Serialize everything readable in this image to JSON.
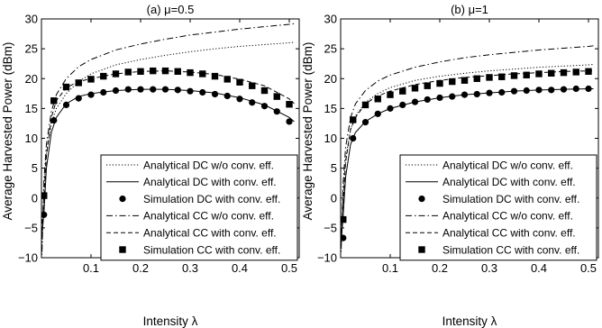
{
  "chart_data": [
    {
      "type": "line",
      "title": "(a) μ=0.5",
      "xlabel": "Intensity λ",
      "ylabel": "Average Harvested Power (dBm)",
      "xlim": [
        0,
        0.52
      ],
      "ylim": [
        -10,
        30
      ],
      "xticks": [
        0.1,
        0.2,
        0.3,
        0.4,
        0.5
      ],
      "xtick_labels": [
        "0.1",
        "0.2",
        "0.3",
        "0.4",
        "0.5"
      ],
      "yticks": [
        -10,
        -5,
        0,
        5,
        10,
        15,
        20,
        25,
        30
      ],
      "ytick_labels": [
        "−10",
        "−5",
        "0",
        "5",
        "10",
        "15",
        "20",
        "25",
        "30"
      ],
      "grid": false,
      "legend_position": "lower-right",
      "series": [
        {
          "name": "Analytical DC w/o conv. eff.",
          "style": "dotted",
          "x": [
            0.001,
            0.005,
            0.01,
            0.02,
            0.03,
            0.05,
            0.075,
            0.1,
            0.15,
            0.2,
            0.25,
            0.3,
            0.35,
            0.4,
            0.45,
            0.5,
            0.51
          ],
          "y": [
            -9.5,
            2.0,
            7.5,
            12.5,
            15.0,
            17.5,
            19.5,
            20.8,
            22.3,
            23.2,
            23.9,
            24.5,
            25.0,
            25.4,
            25.7,
            26.0,
            26.1
          ]
        },
        {
          "name": "Analytical DC with conv. eff.",
          "style": "solid",
          "x": [
            0.0,
            0.005,
            0.01,
            0.02,
            0.03,
            0.05,
            0.075,
            0.1,
            0.15,
            0.2,
            0.25,
            0.3,
            0.35,
            0.4,
            0.45,
            0.5,
            0.51
          ],
          "y": [
            -7.0,
            -2.5,
            5.0,
            11.0,
            13.5,
            15.8,
            17.0,
            17.5,
            18.0,
            18.2,
            18.2,
            18.0,
            17.6,
            16.8,
            15.6,
            13.5,
            12.8
          ]
        },
        {
          "name": "Simulation DC with conv. eff.",
          "style": "circle-markers",
          "x": [
            0.005,
            0.025,
            0.05,
            0.075,
            0.1,
            0.125,
            0.15,
            0.175,
            0.2,
            0.225,
            0.25,
            0.275,
            0.3,
            0.325,
            0.35,
            0.375,
            0.4,
            0.425,
            0.45,
            0.475,
            0.5
          ],
          "y": [
            -2.8,
            13.0,
            15.6,
            16.7,
            17.3,
            17.7,
            18.0,
            18.2,
            18.2,
            18.2,
            18.2,
            18.1,
            17.9,
            17.7,
            17.4,
            17.1,
            16.6,
            16.0,
            15.4,
            14.5,
            12.8
          ]
        },
        {
          "name": "Analytical CC w/o conv. eff.",
          "style": "dashdot",
          "x": [
            0.001,
            0.005,
            0.01,
            0.02,
            0.03,
            0.05,
            0.075,
            0.1,
            0.15,
            0.2,
            0.25,
            0.3,
            0.35,
            0.4,
            0.45,
            0.5,
            0.51
          ],
          "y": [
            -9.0,
            3.0,
            9.0,
            14.5,
            17.3,
            20.0,
            22.0,
            23.2,
            24.8,
            25.8,
            26.6,
            27.3,
            27.8,
            28.3,
            28.7,
            29.1,
            29.2
          ]
        },
        {
          "name": "Analytical CC with conv. eff.",
          "style": "dashed",
          "x": [
            0.0,
            0.005,
            0.01,
            0.02,
            0.03,
            0.05,
            0.075,
            0.1,
            0.15,
            0.2,
            0.25,
            0.3,
            0.35,
            0.4,
            0.45,
            0.5,
            0.51
          ],
          "y": [
            -5.5,
            0.5,
            7.0,
            13.5,
            16.3,
            18.5,
            19.5,
            20.0,
            20.8,
            21.2,
            21.3,
            21.1,
            20.7,
            19.9,
            18.8,
            16.6,
            15.8
          ]
        },
        {
          "name": "Simulation CC with conv. eff.",
          "style": "square-markers",
          "x": [
            0.005,
            0.025,
            0.05,
            0.075,
            0.1,
            0.125,
            0.15,
            0.175,
            0.2,
            0.225,
            0.25,
            0.275,
            0.3,
            0.325,
            0.35,
            0.375,
            0.4,
            0.425,
            0.45,
            0.475,
            0.5
          ],
          "y": [
            0.4,
            16.3,
            18.6,
            19.3,
            19.9,
            20.4,
            20.8,
            21.1,
            21.2,
            21.3,
            21.3,
            21.2,
            21.0,
            20.8,
            20.4,
            19.9,
            19.4,
            18.8,
            18.0,
            17.0,
            15.7
          ]
        }
      ]
    },
    {
      "type": "line",
      "title": "(b) μ=1",
      "xlabel": "Intensity λ",
      "ylabel": "Average Harvested Power (dBm)",
      "xlim": [
        0,
        0.52
      ],
      "ylim": [
        -10,
        30
      ],
      "xticks": [
        0.1,
        0.2,
        0.3,
        0.4,
        0.5
      ],
      "xtick_labels": [
        "0.1",
        "0.2",
        "0.3",
        "0.4",
        "0.5"
      ],
      "yticks": [
        -10,
        -5,
        0,
        5,
        10,
        15,
        20,
        25,
        30
      ],
      "ytick_labels": [
        "−10",
        "−5",
        "0",
        "5",
        "10",
        "15",
        "20",
        "25",
        "30"
      ],
      "grid": false,
      "legend_position": "lower-right",
      "series": [
        {
          "name": "Analytical DC w/o conv. eff.",
          "style": "dotted",
          "x": [
            0.001,
            0.005,
            0.01,
            0.02,
            0.03,
            0.05,
            0.075,
            0.1,
            0.15,
            0.2,
            0.25,
            0.3,
            0.35,
            0.4,
            0.45,
            0.5,
            0.51
          ],
          "y": [
            -9.0,
            1.0,
            6.5,
            11.5,
            13.8,
            16.0,
            17.5,
            18.5,
            19.7,
            20.4,
            20.9,
            21.3,
            21.6,
            21.9,
            22.1,
            22.3,
            22.4
          ]
        },
        {
          "name": "Analytical DC with conv. eff.",
          "style": "solid",
          "x": [
            0.0,
            0.005,
            0.01,
            0.02,
            0.03,
            0.05,
            0.075,
            0.1,
            0.15,
            0.2,
            0.25,
            0.3,
            0.35,
            0.4,
            0.45,
            0.5,
            0.51
          ],
          "y": [
            -8.5,
            -3.0,
            3.5,
            9.0,
            11.0,
            12.8,
            14.1,
            15.0,
            16.1,
            16.8,
            17.3,
            17.6,
            17.9,
            18.1,
            18.2,
            18.3,
            18.3
          ]
        },
        {
          "name": "Simulation DC with conv. eff.",
          "style": "circle-markers",
          "x": [
            0.005,
            0.025,
            0.05,
            0.075,
            0.1,
            0.125,
            0.15,
            0.175,
            0.2,
            0.225,
            0.25,
            0.275,
            0.3,
            0.325,
            0.35,
            0.375,
            0.4,
            0.425,
            0.45,
            0.475,
            0.5
          ],
          "y": [
            -6.7,
            10.0,
            12.7,
            14.1,
            15.0,
            15.6,
            16.1,
            16.5,
            16.8,
            17.0,
            17.3,
            17.4,
            17.6,
            17.7,
            17.9,
            18.0,
            18.1,
            18.1,
            18.2,
            18.3,
            18.3
          ]
        },
        {
          "name": "Analytical CC w/o conv. eff.",
          "style": "dashdot",
          "x": [
            0.001,
            0.005,
            0.01,
            0.02,
            0.03,
            0.05,
            0.075,
            0.1,
            0.15,
            0.2,
            0.25,
            0.3,
            0.35,
            0.4,
            0.45,
            0.5,
            0.51
          ],
          "y": [
            -8.5,
            2.5,
            8.5,
            13.5,
            15.8,
            18.0,
            19.6,
            20.6,
            21.9,
            22.8,
            23.5,
            24.0,
            24.4,
            24.8,
            25.1,
            25.4,
            25.5
          ]
        },
        {
          "name": "Analytical CC with conv. eff.",
          "style": "dashed",
          "x": [
            0.0,
            0.005,
            0.01,
            0.02,
            0.03,
            0.05,
            0.075,
            0.1,
            0.15,
            0.2,
            0.25,
            0.3,
            0.35,
            0.4,
            0.45,
            0.5,
            0.51
          ],
          "y": [
            -7.0,
            -1.0,
            6.0,
            11.5,
            13.5,
            15.8,
            17.1,
            17.9,
            19.0,
            19.7,
            20.2,
            20.5,
            20.8,
            21.0,
            21.2,
            21.3,
            21.3
          ]
        },
        {
          "name": "Simulation CC with conv. eff.",
          "style": "square-markers",
          "x": [
            0.005,
            0.025,
            0.05,
            0.075,
            0.1,
            0.125,
            0.15,
            0.175,
            0.2,
            0.225,
            0.25,
            0.275,
            0.3,
            0.325,
            0.35,
            0.375,
            0.4,
            0.425,
            0.45,
            0.475,
            0.5
          ],
          "y": [
            -3.6,
            13.1,
            15.6,
            16.6,
            17.3,
            17.9,
            18.4,
            18.8,
            19.2,
            19.5,
            19.7,
            20.0,
            20.2,
            20.3,
            20.5,
            20.6,
            20.8,
            20.9,
            21.0,
            21.1,
            21.2
          ]
        }
      ]
    }
  ]
}
